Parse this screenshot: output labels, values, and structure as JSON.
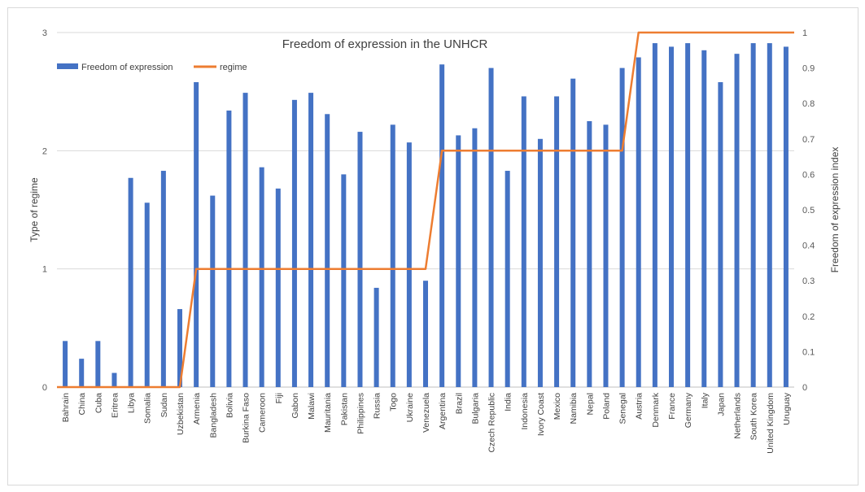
{
  "chart_data": {
    "type": "bar",
    "title": "Freedom of expression in the UNHCR",
    "ylabel_left": "Type of regime",
    "ylabel_right": "Freedom of expression index",
    "ylim_left": [
      0,
      3
    ],
    "ylim_right": [
      0,
      1
    ],
    "yticks_left": [
      "0",
      "1",
      "2",
      "3"
    ],
    "yticks_right": [
      "0",
      "0.1",
      "0.2",
      "0.3",
      "0.4",
      "0.5",
      "0.6",
      "0.7",
      "0.8",
      "0.9",
      "1"
    ],
    "grid": true,
    "legend_position": "top-left",
    "categories": [
      "Bahrain",
      "China",
      "Cuba",
      "Eritrea",
      "Libya",
      "Somalia",
      "Sudan",
      "Uzbekistan",
      "Armenia",
      "Bangladesh",
      "Bolivia",
      "Burkina Faso",
      "Cameroon",
      "Fiji",
      "Gabon",
      "Malawi",
      "Mauritania",
      "Pakistan",
      "Philippines",
      "Russia",
      "Togo",
      "Ukraine",
      "Venezuela",
      "Argentina",
      "Brazil",
      "Bulgaria",
      "Czech Republic",
      "India",
      "Indonesia",
      "Ivory Coast",
      "Mexico",
      "Namibia",
      "Nepal",
      "Poland",
      "Senegal",
      "Austria",
      "Denmark",
      "France",
      "Germany",
      "Italy",
      "Japan",
      "Netherlands",
      "South Korea",
      "United Kingdom",
      "Uruguay"
    ],
    "series": [
      {
        "name": "Freedom of expression",
        "type": "bar",
        "axis": "right",
        "color": "#4472c4",
        "values": [
          0.13,
          0.08,
          0.13,
          0.04,
          0.59,
          0.52,
          0.61,
          0.22,
          0.86,
          0.54,
          0.78,
          0.83,
          0.62,
          0.56,
          0.81,
          0.83,
          0.77,
          0.6,
          0.72,
          0.28,
          0.74,
          0.69,
          0.3,
          0.91,
          0.71,
          0.73,
          0.9,
          0.61,
          0.82,
          0.7,
          0.82,
          0.87,
          0.75,
          0.74,
          0.9,
          0.93,
          0.97,
          0.96,
          0.97,
          0.95,
          0.86,
          0.94,
          0.97,
          0.97,
          0.96
        ]
      },
      {
        "name": "regime",
        "type": "line",
        "axis": "left",
        "color": "#ed7d31",
        "values": [
          0,
          0,
          0,
          0,
          0,
          0,
          0,
          0,
          1,
          1,
          1,
          1,
          1,
          1,
          1,
          1,
          1,
          1,
          1,
          1,
          1,
          1,
          1,
          2,
          2,
          2,
          2,
          2,
          2,
          2,
          2,
          2,
          2,
          2,
          2,
          3,
          3,
          3,
          3,
          3,
          3,
          3,
          3,
          3,
          3
        ]
      }
    ]
  }
}
